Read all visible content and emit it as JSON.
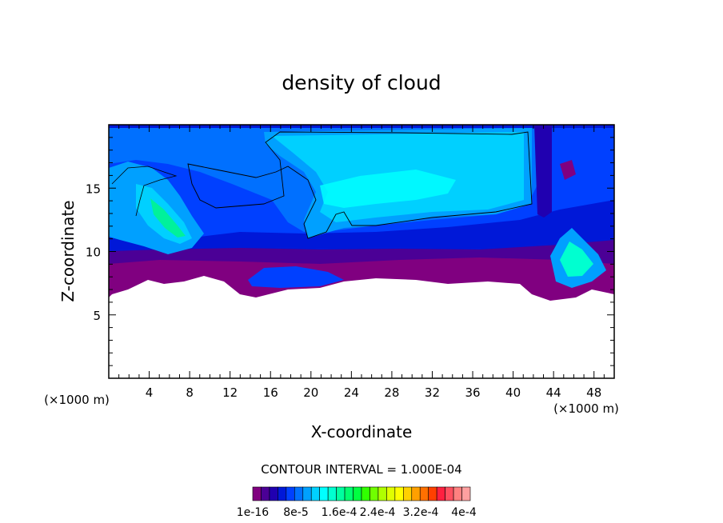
{
  "chart_data": {
    "type": "heatmap",
    "title": "density of cloud",
    "xlabel": "X-coordinate",
    "ylabel": "Z-coordinate",
    "x_unit_label_left": "(×1000 m)",
    "x_unit_label_right": "(×1000 m)",
    "xlim": [
      0,
      50
    ],
    "ylim": [
      0,
      20
    ],
    "x_ticks": [
      4,
      8,
      12,
      16,
      20,
      24,
      28,
      32,
      36,
      40,
      44,
      48
    ],
    "y_ticks": [
      5,
      10,
      15
    ],
    "contour_interval_text": "CONTOUR INTERVAL = 1.000E-04",
    "colorbar_labels": [
      "1e-16",
      "8e-5",
      "1.6e-4",
      "2.4e-4",
      "3.2e-4",
      "4e-4"
    ],
    "colorbar_colors": [
      "#800080",
      "#4b0096",
      "#2000b0",
      "#0018d8",
      "#0040ff",
      "#0070ff",
      "#00a0ff",
      "#00d0ff",
      "#00ffff",
      "#00ffd0",
      "#00ffa0",
      "#00ff70",
      "#00ff40",
      "#30ff00",
      "#70ff00",
      "#b0ff00",
      "#e0ff00",
      "#ffff00",
      "#ffd000",
      "#ffa000",
      "#ff7000",
      "#ff4000",
      "#ff2040",
      "#ff5060",
      "#ff8080",
      "#ffa0a0"
    ],
    "cloud_layer_z_range_approx": [
      7,
      20
    ],
    "cloud_layer_x_range": [
      0,
      50
    ],
    "gap_region_z_approx": [
      0,
      7
    ]
  }
}
